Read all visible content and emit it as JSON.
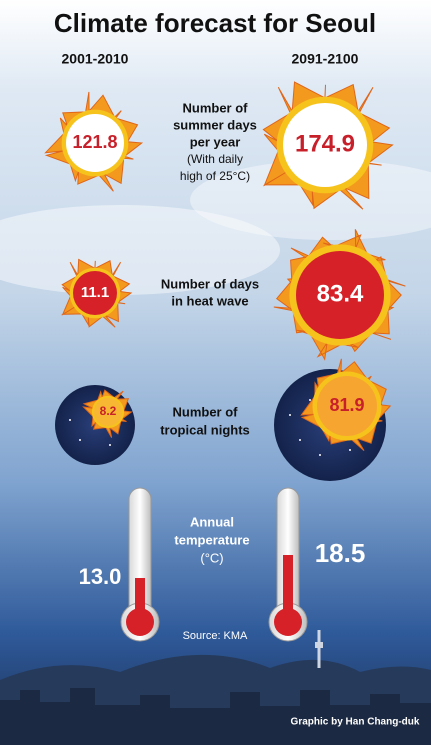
{
  "title": "Climate forecast for Seoul",
  "periods": [
    "2001-2010",
    "2091-2100"
  ],
  "rows": [
    {
      "label": [
        "Number of",
        "summer days",
        "per year"
      ],
      "note": [
        "(With daily",
        "high of 25°C)"
      ],
      "values": [
        121.8,
        174.9
      ]
    },
    {
      "label": [
        "Number of days",
        "in heat wave"
      ],
      "values": [
        11.1,
        83.4
      ]
    },
    {
      "label": [
        "Number of",
        "tropical nights"
      ],
      "values": [
        8.2,
        81.9
      ]
    },
    {
      "label": [
        "Annual",
        "temperature"
      ],
      "note": [
        "(°C)"
      ],
      "values": [
        "13.0",
        18.5
      ]
    }
  ],
  "source": "Source: KMA",
  "credit": "Graphic by Han Chang-duk"
}
